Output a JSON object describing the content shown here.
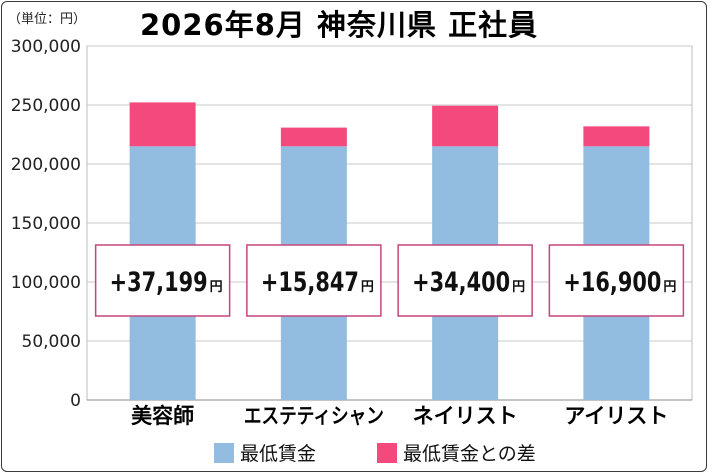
{
  "header": {
    "unit_label": "（単位：円）",
    "title": "2026年8月  神奈川県  正社員"
  },
  "colors": {
    "base": "#92bde0",
    "diff": "#f4497d",
    "grid": "#c8c8c8",
    "box_border": "#c4467f"
  },
  "chart_data": {
    "type": "bar",
    "stacked": true,
    "categories": [
      "美容師",
      "エステティシャン",
      "ネイリスト",
      "アイリスト"
    ],
    "series": [
      {
        "name": "最低賃金",
        "values": [
          215000,
          215000,
          215000,
          215000
        ]
      },
      {
        "name": "最低賃金との差",
        "values": [
          37199,
          15847,
          34400,
          16900
        ]
      }
    ],
    "ylim": [
      0,
      300000
    ],
    "yticks": [
      "0",
      "50,000",
      "100,000",
      "150,000",
      "200,000",
      "250,000",
      "300,000"
    ],
    "ytick_values": [
      0,
      50000,
      100000,
      150000,
      200000,
      250000,
      300000
    ],
    "grid": true,
    "legend_position": "bottom",
    "annotations": [
      "+37,199",
      "+15,847",
      "+34,400",
      "+16,900"
    ],
    "annotation_unit": "円"
  }
}
